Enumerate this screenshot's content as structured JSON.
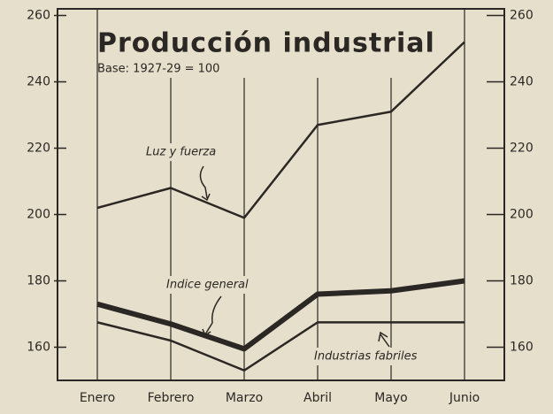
{
  "chart_data": {
    "type": "line",
    "title": "Producción industrial",
    "subtitle": "Base: 1927-29 = 100",
    "categories": [
      "Enero",
      "Febrero",
      "Marzo",
      "Abril",
      "Mayo",
      "Junio"
    ],
    "series": [
      {
        "name": "Luz y fuerza",
        "color": "#2b2724",
        "line_width": 2.5,
        "values": [
          202,
          208,
          199,
          227,
          231,
          252
        ]
      },
      {
        "name": "Indice general",
        "color": "#2b2724",
        "line_width": 6,
        "values": [
          173,
          167,
          159.5,
          176,
          177,
          180
        ]
      },
      {
        "name": "Industrias fabriles",
        "color": "#2b2724",
        "line_width": 2.5,
        "values": [
          167.5,
          162,
          153,
          167.5,
          167.5,
          167.5
        ]
      }
    ],
    "ylim": [
      150,
      262
    ],
    "yticks": [
      160,
      180,
      200,
      220,
      240,
      260
    ],
    "grid": true
  }
}
